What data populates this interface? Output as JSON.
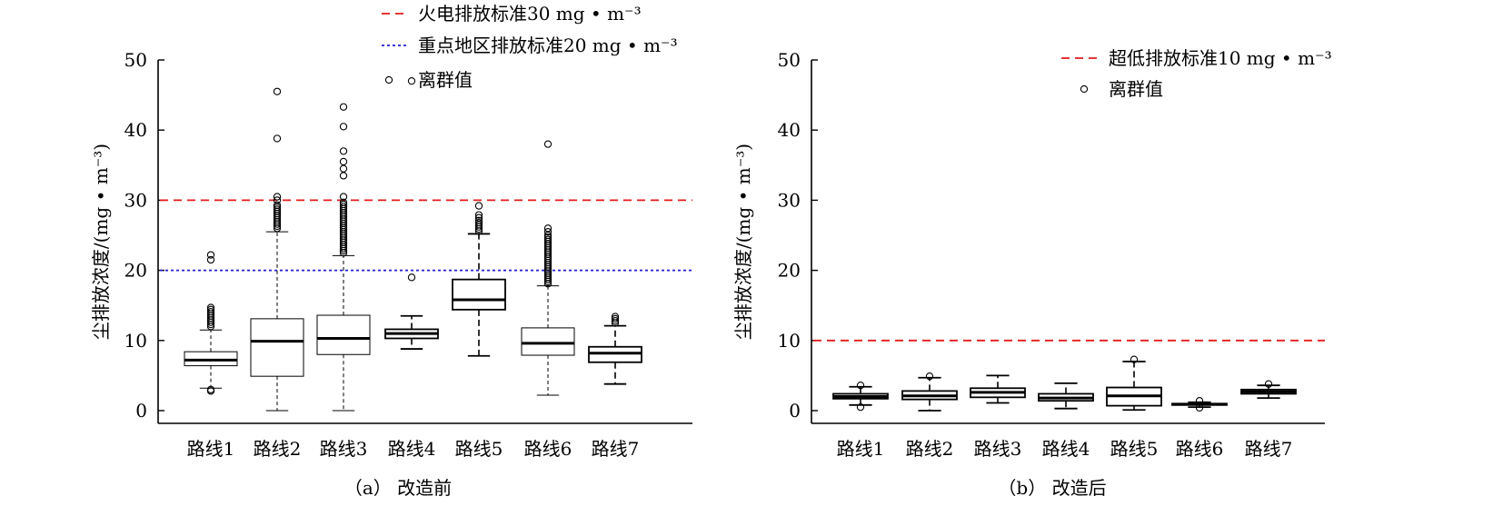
{
  "chart_data": [
    {
      "type": "boxplot",
      "caption": "（a） 改造前",
      "ylabel": "尘排放浓度/(mg • m⁻³)",
      "ylim": [
        0,
        50
      ],
      "yticks": [
        0,
        10,
        20,
        30,
        40,
        50
      ],
      "grid": false,
      "categories": [
        "路线1",
        "路线2",
        "路线3",
        "路线4",
        "路线5",
        "路线6",
        "路线7"
      ],
      "reference_lines": [
        {
          "label": "火电排放标准30 mg • m⁻³",
          "value": 30,
          "color": "#e41a1c",
          "style": "dashed"
        },
        {
          "label": "重点地区排放标准20 mg • m⁻³",
          "value": 20,
          "color": "#1f1fd1",
          "style": "dotted"
        }
      ],
      "outlier_legend": "离群值",
      "legend_position": "top-right",
      "boxes": [
        {
          "min": 3.2,
          "q1": 6.4,
          "median": 7.2,
          "q3": 8.4,
          "max": 11.5,
          "bold": false,
          "outliers": [
            2.8,
            3.0,
            12.0,
            12.3,
            12.6,
            12.9,
            13.2,
            13.5,
            13.8,
            14.1,
            14.4,
            14.7,
            21.5,
            22.2
          ]
        },
        {
          "min": 0.0,
          "q1": 4.9,
          "median": 9.9,
          "q3": 13.1,
          "max": 25.5,
          "bold": false,
          "outliers": [
            26.0,
            26.3,
            26.6,
            26.9,
            27.2,
            27.5,
            27.8,
            28.1,
            28.4,
            28.7,
            29.0,
            29.3,
            30.0,
            30.5,
            38.8,
            45.5
          ]
        },
        {
          "min": 0.0,
          "q1": 8.0,
          "median": 10.3,
          "q3": 13.6,
          "max": 22.1,
          "bold": false,
          "outliers": [
            22.5,
            22.8,
            23.1,
            23.4,
            23.7,
            24.0,
            24.3,
            24.6,
            24.9,
            25.2,
            25.5,
            25.8,
            26.1,
            26.4,
            26.7,
            27.0,
            27.3,
            27.6,
            27.9,
            28.2,
            28.5,
            28.8,
            29.1,
            29.4,
            29.7,
            30.5,
            33.5,
            34.5,
            35.5,
            37.0,
            40.5,
            43.3
          ]
        },
        {
          "min": 8.8,
          "q1": 10.3,
          "median": 11.0,
          "q3": 11.6,
          "max": 13.5,
          "bold": true,
          "outliers": [
            19.0,
            47.0
          ]
        },
        {
          "min": 7.8,
          "q1": 14.4,
          "median": 15.8,
          "q3": 18.7,
          "max": 25.2,
          "bold": true,
          "outliers": [
            25.6,
            25.9,
            26.2,
            26.5,
            26.8,
            27.1,
            27.5,
            27.9,
            29.2
          ]
        },
        {
          "min": 2.2,
          "q1": 7.9,
          "median": 9.6,
          "q3": 11.8,
          "max": 17.8,
          "bold": false,
          "outliers": [
            18.1,
            18.4,
            18.7,
            19.0,
            19.3,
            19.6,
            19.9,
            20.2,
            20.5,
            20.8,
            21.1,
            21.4,
            21.7,
            22.0,
            22.3,
            22.6,
            22.9,
            23.2,
            23.5,
            23.8,
            24.1,
            24.4,
            24.7,
            25.0,
            25.5,
            26.0,
            38.0
          ]
        },
        {
          "min": 3.8,
          "q1": 6.9,
          "median": 8.2,
          "q3": 9.1,
          "max": 12.1,
          "bold": true,
          "outliers": [
            12.5,
            12.8,
            13.1,
            13.4
          ]
        }
      ]
    },
    {
      "type": "boxplot",
      "caption": "（b） 改造后",
      "ylabel": "尘排放浓度/(mg • m⁻³)",
      "ylim": [
        0,
        50
      ],
      "yticks": [
        0,
        10,
        20,
        30,
        40,
        50
      ],
      "grid": false,
      "categories": [
        "路线1",
        "路线2",
        "路线3",
        "路线4",
        "路线5",
        "路线6",
        "路线7"
      ],
      "reference_lines": [
        {
          "label": "超低排放标准10 mg • m⁻³",
          "value": 10,
          "color": "#e41a1c",
          "style": "dashed"
        }
      ],
      "outlier_legend": "离群值",
      "legend_position": "top-right",
      "boxes": [
        {
          "min": 0.8,
          "q1": 1.7,
          "median": 2.0,
          "q3": 2.4,
          "max": 3.4,
          "bold": true,
          "outliers": [
            0.5,
            3.6
          ]
        },
        {
          "min": 0.0,
          "q1": 1.6,
          "median": 2.1,
          "q3": 2.8,
          "max": 4.7,
          "bold": true,
          "outliers": [
            4.9
          ]
        },
        {
          "min": 1.1,
          "q1": 1.9,
          "median": 2.6,
          "q3": 3.2,
          "max": 5.0,
          "bold": true,
          "outliers": []
        },
        {
          "min": 0.3,
          "q1": 1.4,
          "median": 1.8,
          "q3": 2.4,
          "max": 3.9,
          "bold": true,
          "outliers": []
        },
        {
          "min": 0.1,
          "q1": 0.7,
          "median": 2.1,
          "q3": 3.3,
          "max": 7.0,
          "bold": true,
          "outliers": [
            7.3
          ]
        },
        {
          "min": 0.5,
          "q1": 0.8,
          "median": 0.9,
          "q3": 1.0,
          "max": 1.2,
          "bold": true,
          "outliers": [
            0.4,
            1.4
          ]
        },
        {
          "min": 1.8,
          "q1": 2.4,
          "median": 2.7,
          "q3": 3.0,
          "max": 3.6,
          "bold": true,
          "outliers": [
            3.8
          ]
        }
      ]
    }
  ]
}
